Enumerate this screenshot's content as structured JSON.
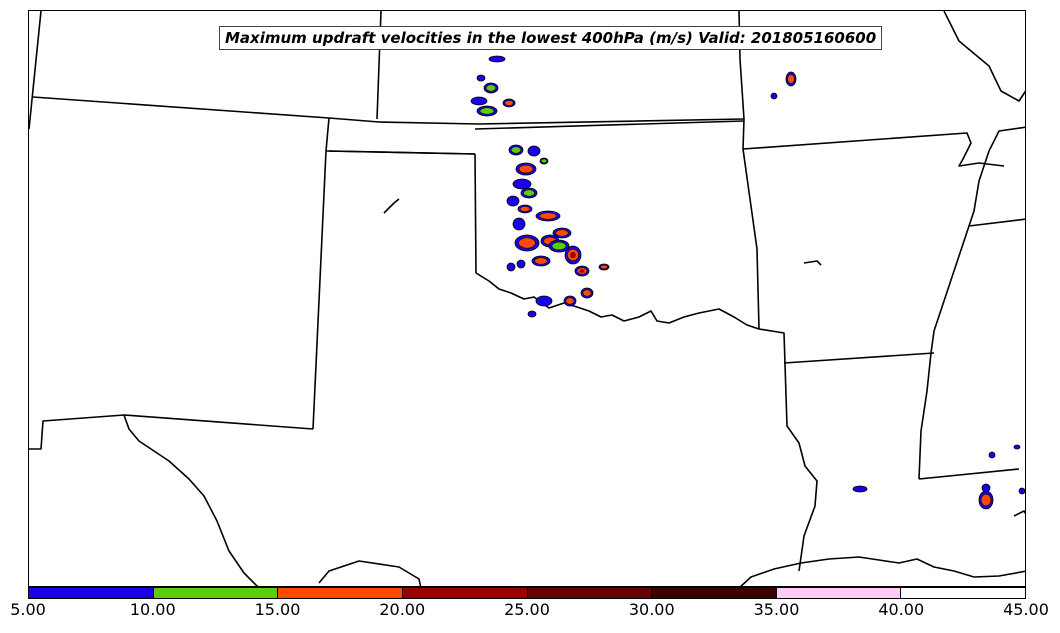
{
  "title": "Maximum updraft velocities in the lowest 400hPa (m/s) Valid: 201805160600",
  "colorbar": {
    "ticks": [
      "5.00",
      "10.00",
      "15.00",
      "20.00",
      "25.00",
      "30.00",
      "35.00",
      "40.00",
      "45.00"
    ],
    "colors": [
      "#1a00e6",
      "#5ccc0f",
      "#ff4a00",
      "#990000",
      "#660000",
      "#3d0000",
      "#ffccf5",
      "#ffffff"
    ]
  },
  "level_colors": {
    "level_5": "#1a00e6",
    "level_10": "#5ccc0f",
    "level_15": "#ff4a00",
    "level_20": "#990000"
  }
}
